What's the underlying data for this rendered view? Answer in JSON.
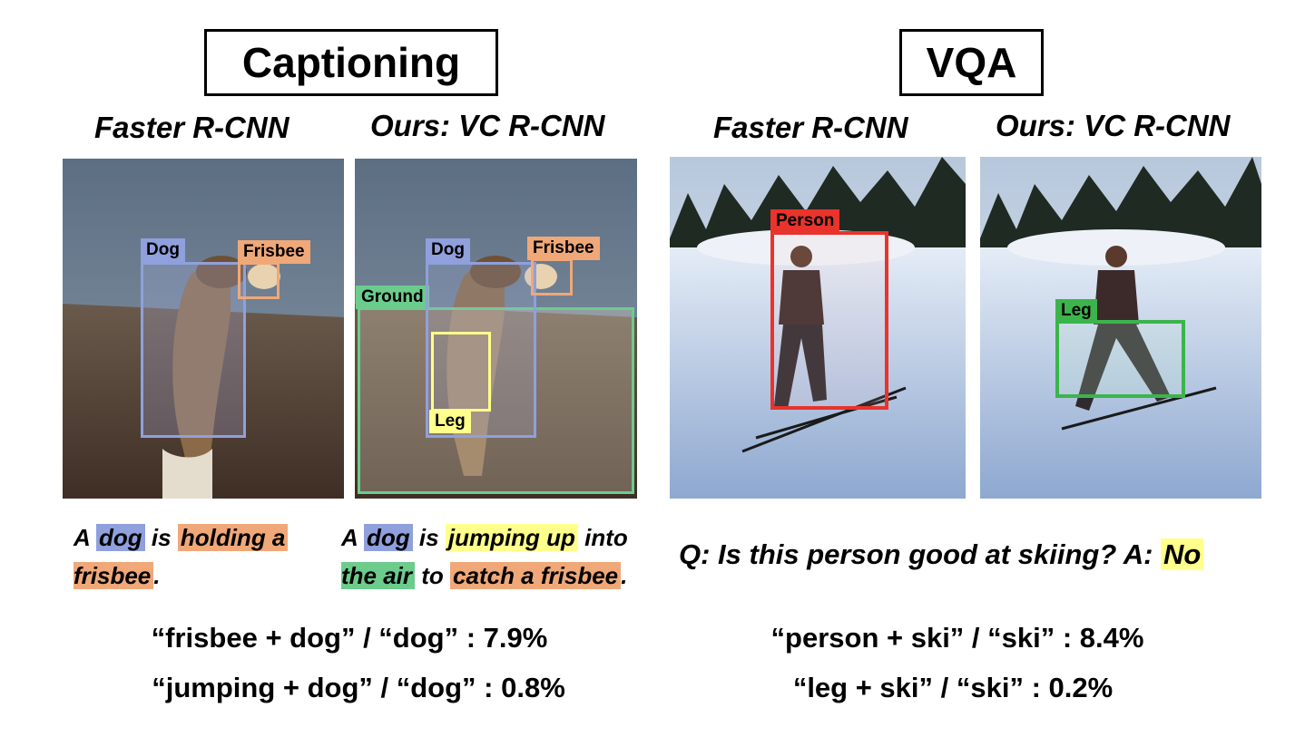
{
  "captioning": {
    "section_title": "Captioning",
    "left_title": "Faster R-CNN",
    "right_title": "Ours: VC R-CNN",
    "left_labels": {
      "dog": "Dog",
      "frisbee": "Frisbee"
    },
    "right_labels": {
      "dog": "Dog",
      "frisbee": "Frisbee",
      "ground": "Ground",
      "leg": "Leg"
    },
    "left_caption": {
      "p1": "A ",
      "w_dog": "dog",
      "p2": " is ",
      "w_holding": "holding a",
      "w_frisbee": "frisbee",
      "p3": "."
    },
    "right_caption": {
      "p1": "A ",
      "w_dog": "dog",
      "p2": " is ",
      "w_jump": "jumping up",
      "p3": " into",
      "w_air": "the air",
      "p4": " to ",
      "w_catch": "catch a frisbee",
      "p5": "."
    },
    "stat1": "“frisbee + dog” / “dog” : 7.9%",
    "stat2": "“jumping + dog” / “dog” : 0.8%"
  },
  "vqa": {
    "section_title": "VQA",
    "left_title": "Faster R-CNN",
    "right_title": "Ours: VC R-CNN",
    "left_labels": {
      "person": "Person"
    },
    "right_labels": {
      "leg": "Leg"
    },
    "question": "Q: Is this person good at skiing?  A: ",
    "answer": "No",
    "stat1": "“person + ski” / “ski” : 8.4%",
    "stat2": "“leg + ski” / “ski” : 0.2%"
  },
  "colors": {
    "dog_blue": "#8fa0dc",
    "frisbee_orange": "#f0a878",
    "ground_green": "#6ccc8c",
    "leg_yellow": "#ffff8c",
    "person_red": "#e8342c",
    "leg_green": "#3cb44c"
  }
}
